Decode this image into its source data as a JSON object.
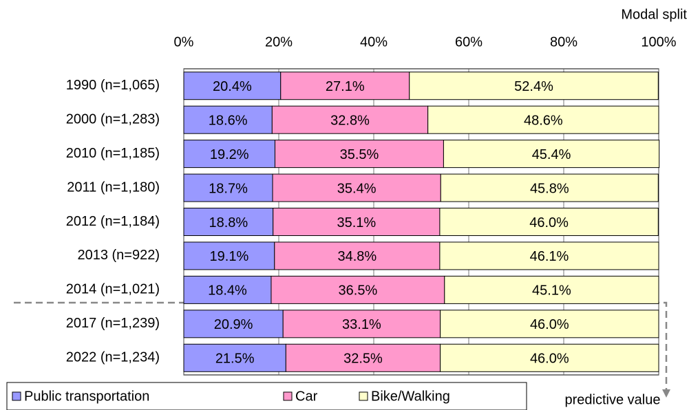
{
  "chart_data": {
    "type": "stacked-bar-horizontal",
    "title": "Modal split",
    "categories": [
      "1990 (n=1,065)",
      "2000 (n=1,283)",
      "2010 (n=1,185)",
      "2011 (n=1,180)",
      "2012 (n=1,184)",
      "2013 (n=922)",
      "2014 (n=1,021)",
      "2017 (n=1,239)",
      "2022 (n=1,234)"
    ],
    "series": [
      {
        "name": "Public transportation",
        "color": "#9999ff",
        "values": [
          20.4,
          18.6,
          19.2,
          18.7,
          18.8,
          19.1,
          18.4,
          20.9,
          21.5
        ],
        "value_labels": [
          "20.4%",
          "18.6%",
          "19.2%",
          "18.7%",
          "18.8%",
          "19.1%",
          "18.4%",
          "20.9%",
          "21.5%"
        ]
      },
      {
        "name": "Car",
        "color": "#ff99cc",
        "values": [
          27.1,
          32.8,
          35.5,
          35.4,
          35.1,
          34.8,
          36.5,
          33.1,
          32.5
        ],
        "value_labels": [
          "27.1%",
          "32.8%",
          "35.5%",
          "35.4%",
          "35.1%",
          "34.8%",
          "36.5%",
          "33.1%",
          "32.5%"
        ]
      },
      {
        "name": "Bike/Walking",
        "color": "#ffffcc",
        "values": [
          52.4,
          48.6,
          45.4,
          45.8,
          46.0,
          46.1,
          45.1,
          46.0,
          46.0
        ],
        "value_labels": [
          "52.4%",
          "48.6%",
          "45.4%",
          "45.8%",
          "46.0%",
          "46.1%",
          "45.1%",
          "46.0%",
          "46.0%"
        ]
      }
    ],
    "xlim": [
      0,
      100
    ],
    "xticks": [
      {
        "value": 0,
        "label": "0%"
      },
      {
        "value": 20,
        "label": "20%"
      },
      {
        "value": 40,
        "label": "40%"
      },
      {
        "value": 60,
        "label": "60%"
      },
      {
        "value": 80,
        "label": "80%"
      },
      {
        "value": 100,
        "label": "100%"
      }
    ],
    "grid": true,
    "annotation": "predictive value"
  }
}
